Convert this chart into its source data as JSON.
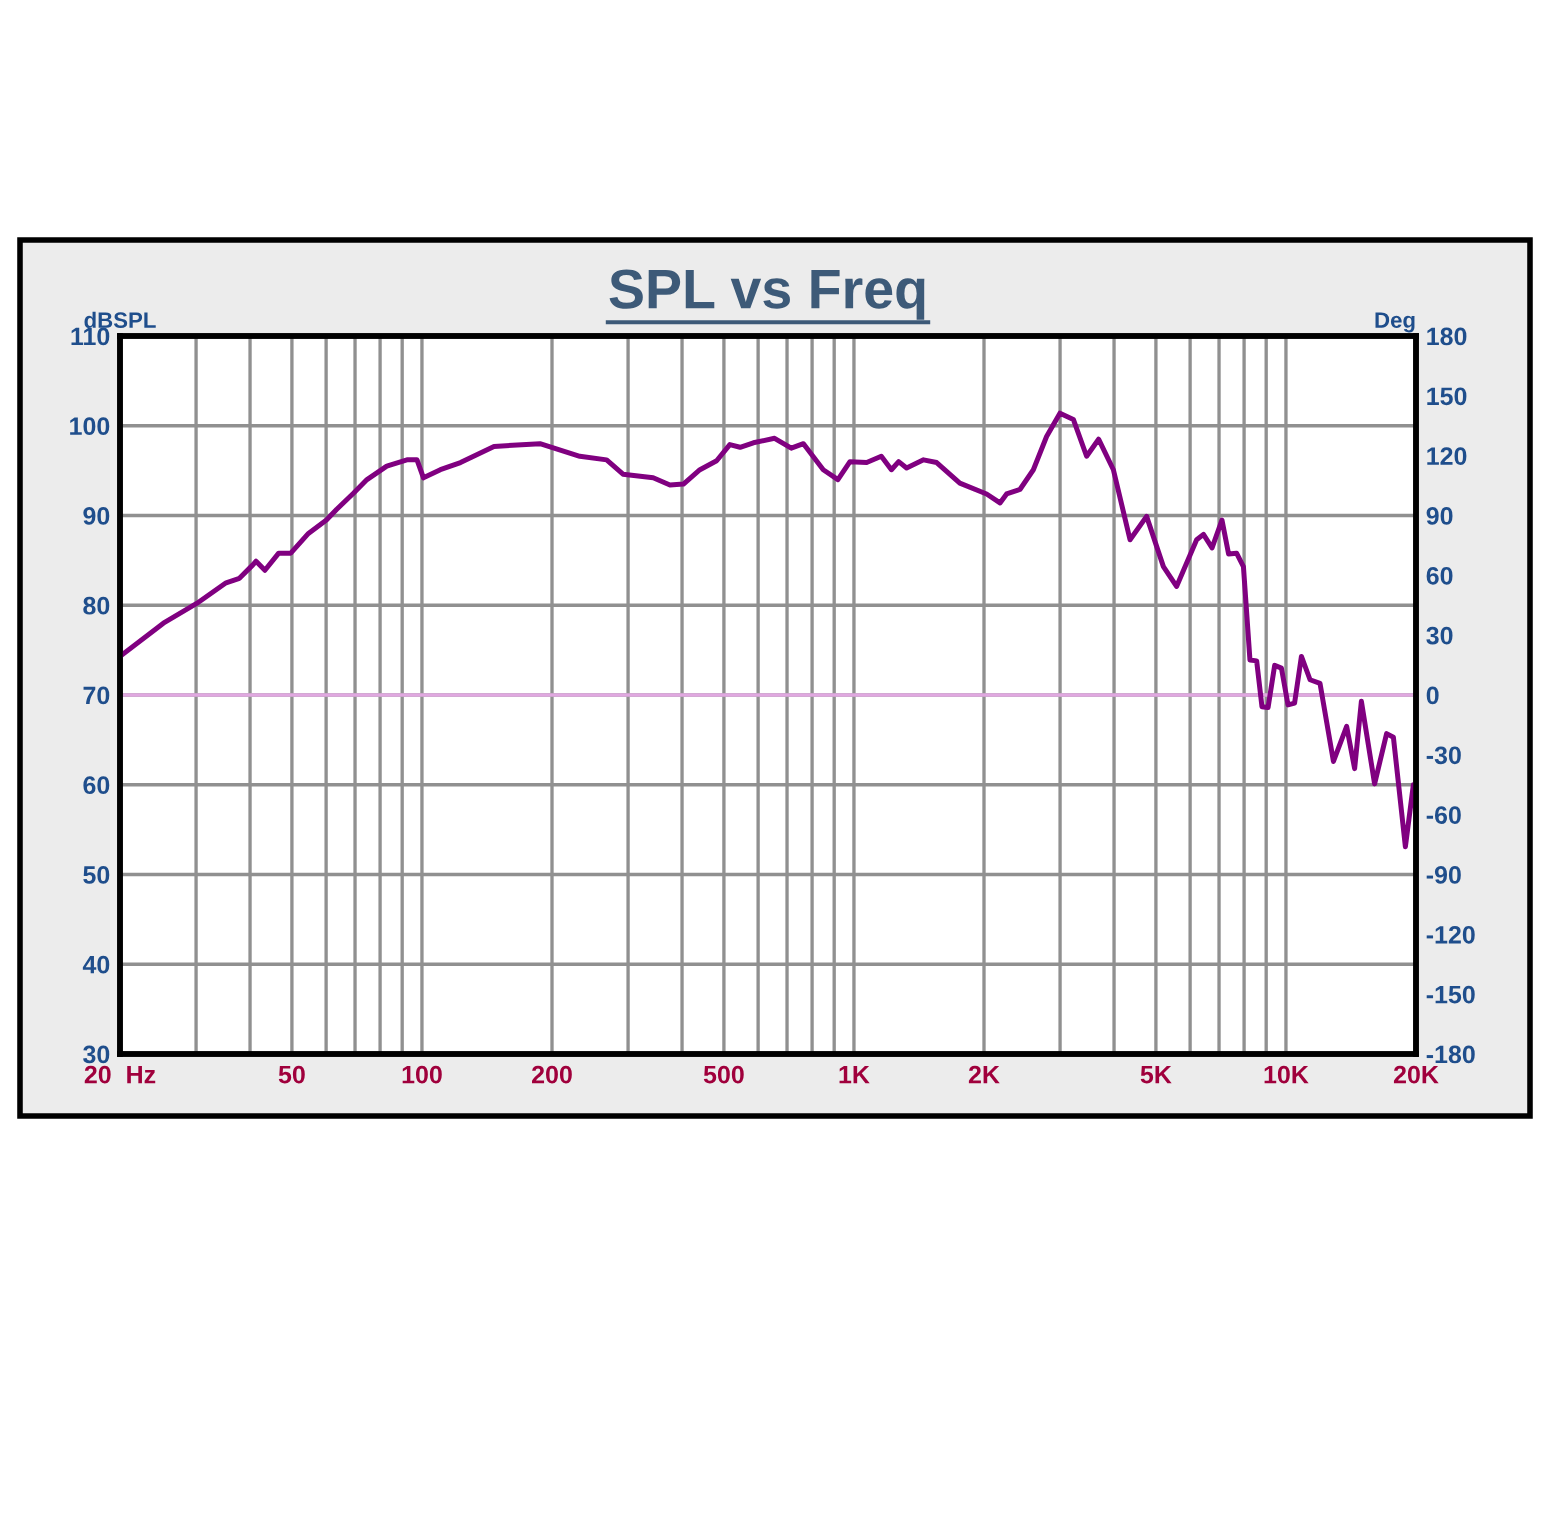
{
  "chart_data": {
    "type": "line",
    "title": "SPL vs Freq",
    "ylabel": "dBSPL",
    "y2label": "Deg",
    "log": "x",
    "grid": true,
    "xlim": [
      20,
      20000
    ],
    "xticks": [
      {
        "value": 20,
        "label": "20  Hz"
      },
      {
        "value": 30,
        "label": null
      },
      {
        "value": 40,
        "label": null
      },
      50,
      {
        "value": 60,
        "label": null
      },
      {
        "value": 70,
        "label": null
      },
      {
        "value": 80,
        "label": null
      },
      {
        "value": 90,
        "label": null
      },
      100,
      200,
      {
        "value": 300,
        "label": null
      },
      {
        "value": 400,
        "label": null
      },
      500,
      {
        "value": 600,
        "label": null
      },
      {
        "value": 700,
        "label": null
      },
      {
        "value": 800,
        "label": null
      },
      {
        "value": 900,
        "label": null
      },
      {
        "value": 1000,
        "label": "1K"
      },
      {
        "value": 2000,
        "label": "2K"
      },
      {
        "value": 3000,
        "label": null
      },
      {
        "value": 4000,
        "label": null
      },
      {
        "value": 5000,
        "label": "5K"
      },
      {
        "value": 6000,
        "label": null
      },
      {
        "value": 7000,
        "label": null
      },
      {
        "value": 8000,
        "label": null
      },
      {
        "value": 9000,
        "label": null
      },
      {
        "value": 10000,
        "label": "10K"
      },
      {
        "value": 20000,
        "label": "20K"
      }
    ],
    "ylim": [
      30,
      110
    ],
    "yticks": [
      30,
      40,
      50,
      60,
      70,
      80,
      90,
      100,
      110
    ],
    "y2lim": [
      -180,
      180
    ],
    "y2ticks": [
      -180,
      -150,
      -120,
      -90,
      -60,
      -30,
      0,
      30,
      60,
      90,
      120,
      150,
      180
    ],
    "ref_lines": [
      {
        "axis": "y",
        "value": 70,
        "color": "#e0a8e0"
      }
    ],
    "series": [
      {
        "color": "#800080",
        "x": [
          20,
          25.2,
          30.1,
          35.2,
          37.8,
          40.6,
          41.3,
          43.3,
          46.6,
          49.7,
          54.6,
          60.1,
          63.5,
          69.5,
          74.6,
          82.9,
          92.3,
          97.4,
          100.8,
          110.3,
          122.8,
          146.8,
          187.6,
          232,
          267.6,
          292,
          343,
          375,
          403,
          440,
          481,
          516,
          545,
          585,
          655,
          716,
          764,
          849,
          918,
          979,
          1070,
          1157,
          1221,
          1269,
          1324,
          1449,
          1554,
          1758,
          2028,
          2178,
          2256,
          2422,
          2602,
          2792,
          2998,
          3220,
          3456,
          3684,
          3986,
          4356,
          4758,
          5204,
          5582,
          6212,
          6442,
          6744,
          7110,
          7366,
          7686,
          7972,
          8254,
          8554,
          8800,
          9090,
          9416,
          9762,
          10110,
          10470,
          10860,
          11370,
          11990,
          12880,
          13820,
          14420,
          14950,
          16040,
          17100,
          17730,
          18900,
          19720,
          20000
        ],
        "values": [
          74.3,
          78.0,
          80.2,
          82.5,
          83.0,
          84.5,
          84.9,
          83.9,
          85.8,
          85.8,
          88.0,
          89.5,
          90.7,
          92.5,
          94.0,
          95.5,
          96.2,
          96.2,
          94.2,
          95.1,
          95.9,
          97.7,
          98.0,
          96.6,
          96.2,
          94.6,
          94.2,
          93.4,
          93.5,
          95.1,
          96.1,
          97.9,
          97.6,
          98.1,
          98.6,
          97.5,
          98.0,
          95.1,
          94.0,
          96.0,
          95.9,
          96.6,
          95.1,
          96.0,
          95.3,
          96.2,
          95.9,
          93.6,
          92.4,
          91.4,
          92.4,
          92.9,
          95.1,
          98.8,
          101.4,
          100.7,
          96.6,
          98.5,
          95.1,
          87.3,
          89.9,
          84.3,
          82.1,
          87.3,
          87.9,
          86.4,
          89.5,
          85.7,
          85.8,
          84.3,
          73.9,
          73.8,
          68.7,
          68.6,
          73.3,
          73.0,
          68.9,
          69.1,
          74.3,
          71.7,
          71.3,
          62.6,
          66.5,
          61.8,
          69.3,
          60.1,
          65.7,
          65.3,
          53.1,
          60.0,
          57.5
        ]
      }
    ]
  }
}
